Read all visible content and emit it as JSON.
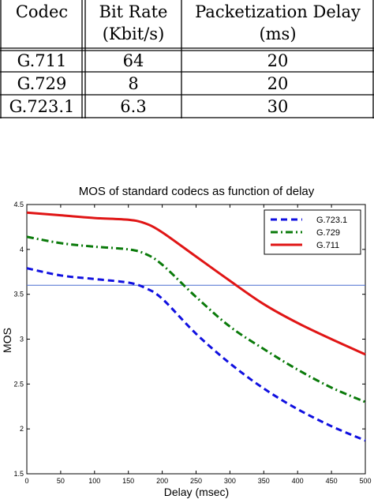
{
  "table": {
    "headers": [
      [
        "Codec"
      ],
      [
        "Bit Rate",
        "(Kbit/s)"
      ],
      [
        "Packetization Delay",
        "(ms)"
      ]
    ],
    "rows": [
      [
        "G.711",
        "64",
        "20"
      ],
      [
        "G.729",
        "8",
        "20"
      ],
      [
        "G.723.1",
        "6.3",
        "30"
      ]
    ]
  },
  "chart_data": {
    "type": "line",
    "title": "MOS of standard codecs as function of delay",
    "xlabel": "Delay (msec)",
    "ylabel": "MOS",
    "xlim": [
      0,
      500
    ],
    "ylim": [
      1.5,
      4.5
    ],
    "xticks": [
      0,
      50,
      100,
      150,
      200,
      250,
      300,
      350,
      400,
      450,
      500
    ],
    "yticks": [
      1.5,
      2,
      2.5,
      3,
      3.5,
      4,
      4.5
    ],
    "legend_position": "top-right",
    "grid": false,
    "reference_line": {
      "y": 3.6,
      "color": "#4a6fd0"
    },
    "series": [
      {
        "name": "G.723.1",
        "color": "#1010e0",
        "style": "dashed",
        "x": [
          0,
          50,
          100,
          150,
          175,
          200,
          250,
          300,
          350,
          400,
          450,
          500
        ],
        "y": [
          3.79,
          3.71,
          3.67,
          3.63,
          3.57,
          3.45,
          3.06,
          2.73,
          2.45,
          2.22,
          2.03,
          1.87
        ]
      },
      {
        "name": "G.729",
        "color": "#0a7a0a",
        "style": "dashdot",
        "x": [
          0,
          50,
          100,
          150,
          175,
          200,
          250,
          300,
          350,
          400,
          450,
          500
        ],
        "y": [
          4.14,
          4.07,
          4.03,
          4.0,
          3.95,
          3.83,
          3.47,
          3.14,
          2.89,
          2.66,
          2.46,
          2.3
        ]
      },
      {
        "name": "G.711",
        "color": "#e01515",
        "style": "solid",
        "x": [
          0,
          50,
          100,
          150,
          175,
          200,
          250,
          300,
          350,
          400,
          450,
          500
        ],
        "y": [
          4.41,
          4.38,
          4.35,
          4.33,
          4.29,
          4.19,
          3.92,
          3.65,
          3.39,
          3.18,
          3.0,
          2.83
        ]
      }
    ]
  }
}
